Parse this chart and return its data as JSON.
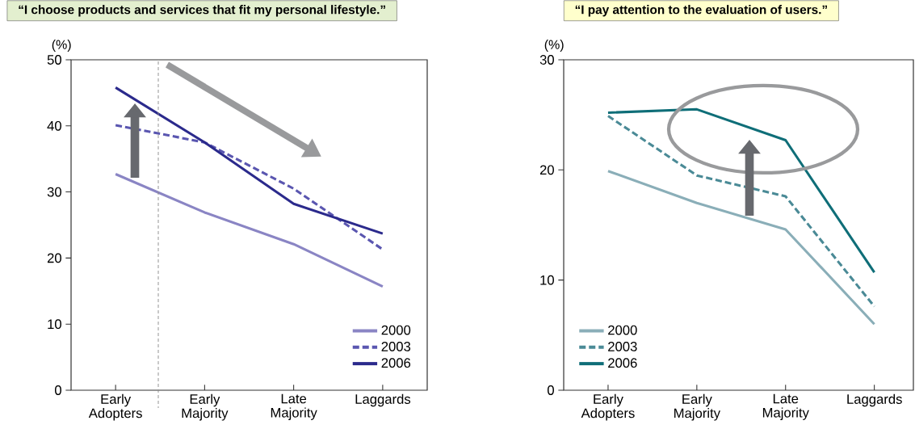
{
  "chart_data": [
    {
      "type": "line",
      "title": "“I choose products and services that fit my personal lifestyle.”",
      "ylabel": "(%)",
      "categories": [
        "Early Adopters",
        "Early Majority",
        "Late Majority",
        "Laggards"
      ],
      "ylim": [
        0,
        50
      ],
      "yticks": [
        0,
        10,
        20,
        30,
        40,
        50
      ],
      "legend": "bottom right",
      "series": [
        {
          "name": "2000",
          "color": "#8a85c4",
          "line_style": "solid",
          "values": [
            32.7,
            26.9,
            22.1,
            15.7
          ]
        },
        {
          "name": "2003",
          "color": "#5a56b0",
          "line_style": "dashed",
          "values": [
            40.1,
            37.5,
            30.5,
            21.3
          ]
        },
        {
          "name": "2006",
          "color": "#2b2a8c",
          "line_style": "solid",
          "values": [
            45.8,
            37.5,
            28.2,
            23.7
          ]
        }
      ]
    },
    {
      "type": "line",
      "title": "“I pay attention to the evaluation of users.”",
      "ylabel": "(%)",
      "categories": [
        "Early Adopters",
        "Early Majority",
        "Late Majority",
        "Laggards"
      ],
      "ylim": [
        0,
        30
      ],
      "yticks": [
        0,
        10,
        20,
        30
      ],
      "legend": "bottom left",
      "series": [
        {
          "name": "2000",
          "color": "#8aaeb8",
          "line_style": "solid",
          "values": [
            19.9,
            17.0,
            14.6,
            6.0
          ]
        },
        {
          "name": "2003",
          "color": "#4a8a96",
          "line_style": "dashed",
          "values": [
            24.9,
            19.5,
            17.6,
            7.6
          ]
        },
        {
          "name": "2006",
          "color": "#0f6e78",
          "line_style": "solid",
          "values": [
            25.2,
            25.5,
            22.7,
            10.7
          ]
        }
      ]
    }
  ]
}
